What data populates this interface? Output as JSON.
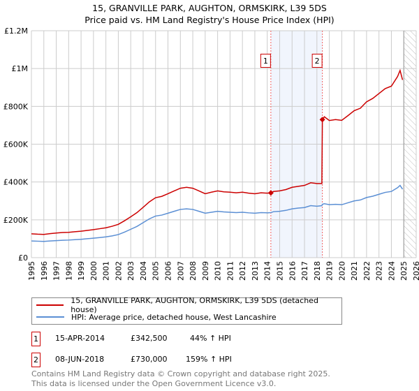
{
  "chart_data": {
    "type": "line",
    "title": "15, GRANVILLE PARK, AUGHTON, ORMSKIRK, L39 5DS",
    "subtitle": "Price paid vs. HM Land Registry's House Price Index (HPI)",
    "xlim": [
      1995,
      2026
    ],
    "ylim": [
      0,
      1200000
    ],
    "x_ticks": [
      "1995",
      "1996",
      "1997",
      "1998",
      "1999",
      "2000",
      "2001",
      "2002",
      "2003",
      "2004",
      "2005",
      "2006",
      "2007",
      "2008",
      "2009",
      "2010",
      "2011",
      "2012",
      "2013",
      "2014",
      "2015",
      "2016",
      "2017",
      "2018",
      "2019",
      "2020",
      "2021",
      "2022",
      "2023",
      "2024",
      "2025",
      "2026"
    ],
    "y_ticks": [
      {
        "v": 0,
        "label": "£0"
      },
      {
        "v": 200000,
        "label": "£200K"
      },
      {
        "v": 400000,
        "label": "£400K"
      },
      {
        "v": 600000,
        "label": "£600K"
      },
      {
        "v": 800000,
        "label": "£800K"
      },
      {
        "v": 1000000,
        "label": "£1M"
      },
      {
        "v": 1200000,
        "label": "£1.2M"
      }
    ],
    "grid": true,
    "shaded_period": [
      2014.29,
      2018.44
    ],
    "forecast_hatch_from": 2025.0,
    "x": [
      1995,
      1995.5,
      1996,
      1996.5,
      1997,
      1997.5,
      1998,
      1998.5,
      1999,
      1999.5,
      2000,
      2000.5,
      2001,
      2001.5,
      2002,
      2002.5,
      2003,
      2003.5,
      2004,
      2004.5,
      2005,
      2005.5,
      2006,
      2006.5,
      2007,
      2007.5,
      2008,
      2008.5,
      2009,
      2009.5,
      2010,
      2010.5,
      2011,
      2011.5,
      2012,
      2012.5,
      2013,
      2013.5,
      2014,
      2014.29,
      2014.5,
      2015,
      2015.5,
      2016,
      2016.5,
      2017,
      2017.5,
      2018,
      2018.4,
      2018.44,
      2018.6,
      2019,
      2019.5,
      2020,
      2020.5,
      2021,
      2021.5,
      2022,
      2022.5,
      2023,
      2023.5,
      2024,
      2024.5,
      2024.7,
      2024.9
    ],
    "series": [
      {
        "name": "15, GRANVILLE PARK, AUGHTON, ORMSKIRK, L39 5DS (detached house)",
        "color": "#cc0000",
        "values": [
          126000,
          124000,
          123000,
          127000,
          130000,
          133000,
          134000,
          137000,
          140000,
          144000,
          148000,
          153000,
          158000,
          166000,
          176000,
          195000,
          216000,
          238000,
          266000,
          295000,
          317000,
          324000,
          338000,
          353000,
          367000,
          372000,
          367000,
          353000,
          338000,
          346000,
          353000,
          348000,
          346000,
          343000,
          346000,
          341000,
          338000,
          343000,
          341000,
          342500,
          350000,
          353000,
          360000,
          372000,
          377000,
          382000,
          396000,
          392000,
          392000,
          730000,
          745000,
          725000,
          730000,
          726000,
          751000,
          777000,
          790000,
          824000,
          842000,
          868000,
          894000,
          907000,
          958000,
          990000,
          940000
        ]
      },
      {
        "name": "HPI: Average price, detached house, West Lancashire",
        "color": "#5b8fd4",
        "values": [
          88000,
          87000,
          86000,
          88000,
          90000,
          92000,
          93000,
          95000,
          97000,
          100000,
          103000,
          106000,
          110000,
          115000,
          122000,
          135000,
          150000,
          165000,
          185000,
          205000,
          220000,
          225000,
          235000,
          245000,
          255000,
          258000,
          255000,
          245000,
          235000,
          240000,
          245000,
          242000,
          240000,
          238000,
          240000,
          237000,
          235000,
          238000,
          237000,
          238000,
          243000,
          245000,
          250000,
          258000,
          262000,
          265000,
          275000,
          272000,
          275000,
          282000,
          285000,
          280000,
          282000,
          280000,
          290000,
          300000,
          305000,
          318000,
          325000,
          335000,
          345000,
          350000,
          370000,
          382000,
          362000
        ]
      }
    ],
    "sales": [
      {
        "id": "1",
        "x": 2014.29,
        "price": 342500,
        "date": "15-APR-2014",
        "price_label": "£342,500",
        "hpi": "44% ↑ HPI"
      },
      {
        "id": "2",
        "x": 2018.44,
        "price": 730000,
        "date": "08-JUN-2018",
        "price_label": "£730,000",
        "hpi": "159% ↑ HPI"
      }
    ]
  },
  "legend": {
    "red": "15, GRANVILLE PARK, AUGHTON, ORMSKIRK, L39 5DS (detached house)",
    "blue": "HPI: Average price, detached house, West Lancashire"
  },
  "footer": {
    "line1": "Contains HM Land Registry data © Crown copyright and database right 2025.",
    "line2": "This data is licensed under the Open Government Licence v3.0."
  }
}
